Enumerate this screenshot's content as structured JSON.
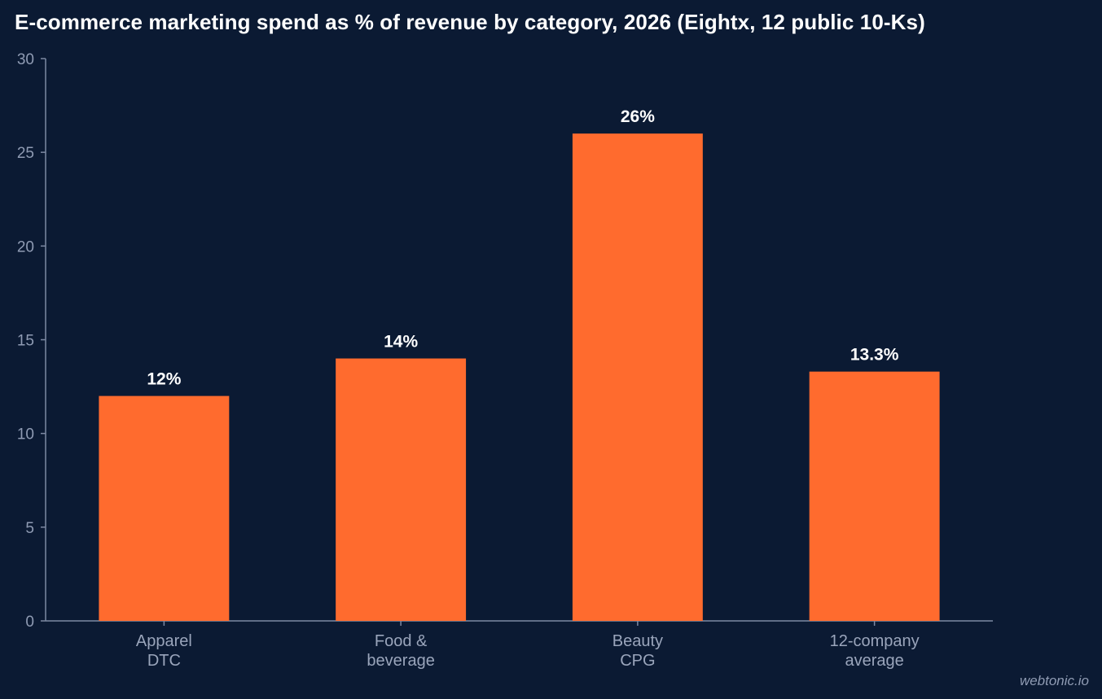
{
  "chart_data": {
    "type": "bar",
    "title": "E-commerce marketing spend as % of revenue by category, 2026 (Eightx, 12 public 10-Ks)",
    "categories": [
      [
        "Apparel",
        "DTC"
      ],
      [
        "Food &",
        "beverage"
      ],
      [
        "Beauty",
        "CPG"
      ],
      [
        "12-company",
        "average"
      ]
    ],
    "values": [
      12,
      14,
      26,
      13.3
    ],
    "data_labels": [
      "12%",
      "14%",
      "26%",
      "13.3%"
    ],
    "xlabel": "",
    "ylabel": "",
    "ylim": [
      0,
      30
    ],
    "yticks": [
      0,
      5,
      10,
      15,
      20,
      25,
      30
    ],
    "grid": false,
    "legend": "none",
    "bar_color": "#ff6b2e",
    "background_color": "#0b1a33",
    "axis_color": "#7d89a3"
  },
  "watermark": "webtonic.io"
}
